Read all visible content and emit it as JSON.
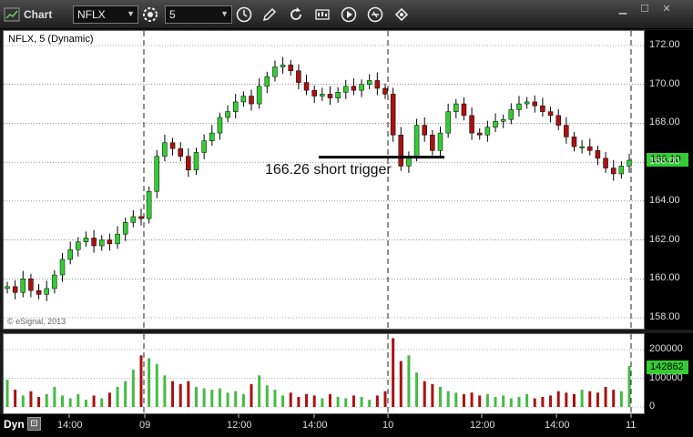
{
  "toolbar": {
    "title": "Chart",
    "symbol": "NFLX",
    "interval": "5",
    "icons": [
      "settings-icon",
      "clock-icon",
      "draw-pencil-icon",
      "refresh-icon",
      "study-icon",
      "play-icon",
      "link-icon",
      "tools-icon"
    ],
    "window_buttons": [
      "minimize",
      "maximize",
      "close"
    ]
  },
  "pane": {
    "symbol_label": "NFLX, 5 (Dynamic)",
    "copyright": "© eSignal, 2013",
    "annotation": "166.26 short trigger"
  },
  "price_axis": {
    "ticks": [
      "172.00",
      "170.00",
      "168.00",
      "166.00",
      "164.00",
      "162.00",
      "160.00",
      "158.00"
    ],
    "last_price": "166.10"
  },
  "volume_axis": {
    "ticks": [
      "200000",
      "100000",
      "0"
    ],
    "last_volume": "142862"
  },
  "time_axis": {
    "labels": [
      "14:00",
      "09",
      "12:00",
      "14:00",
      "10",
      "12:00",
      "14:00",
      "11"
    ]
  },
  "footer": {
    "mode": "Dyn"
  },
  "colors": {
    "up": "#33cc33",
    "down": "#aa1111",
    "wick": "#000000",
    "volume_up": "#44bb44",
    "volume_down": "#aa1111",
    "last_tag": "#33cc33"
  },
  "chart_data": {
    "type": "candlestick",
    "trigger_level": 166.26,
    "ylim": [
      157.5,
      172.6
    ],
    "volume_ylim": [
      0,
      250000
    ],
    "path": [
      159.6,
      159.3,
      160.0,
      159.4,
      159.2,
      159.5,
      160.2,
      161.0,
      161.5,
      161.9,
      162.1,
      161.7,
      162.0,
      161.8,
      162.3,
      162.9,
      163.2,
      163.1,
      164.5,
      166.3,
      167.0,
      166.7,
      166.3,
      165.6,
      166.5,
      167.1,
      167.5,
      168.3,
      168.6,
      169.1,
      169.4,
      169.0,
      169.9,
      170.4,
      170.9,
      171.0,
      170.7,
      170.1,
      169.7,
      169.4,
      169.5,
      169.3,
      169.6,
      169.9,
      169.7,
      170.0,
      170.2,
      169.8,
      169.5,
      167.4,
      165.8,
      166.3,
      167.9,
      167.4,
      166.6,
      167.5,
      168.6,
      169.0,
      168.4,
      167.5,
      167.4,
      167.8,
      168.1,
      168.2,
      168.7,
      169.0,
      169.1,
      168.9,
      168.6,
      168.4,
      167.9,
      167.3,
      166.8,
      166.8,
      166.6,
      166.2,
      165.7,
      165.4,
      165.8,
      166.1
    ],
    "volume": [
      95000,
      60000,
      40000,
      55000,
      35000,
      45000,
      70000,
      40000,
      30000,
      45000,
      25000,
      40000,
      30000,
      50000,
      70000,
      90000,
      130000,
      180000,
      170000,
      150000,
      110000,
      90000,
      80000,
      90000,
      70000,
      65000,
      60000,
      65000,
      50000,
      55000,
      45000,
      80000,
      110000,
      75000,
      60000,
      40000,
      50000,
      35000,
      45000,
      40000,
      30000,
      45000,
      35000,
      30000,
      40000,
      35000,
      25000,
      40000,
      55000,
      240000,
      160000,
      180000,
      120000,
      90000,
      80000,
      70000,
      55000,
      50000,
      45000,
      50000,
      40000,
      45000,
      35000,
      40000,
      30000,
      35000,
      45000,
      30000,
      35000,
      40000,
      55000,
      50000,
      45000,
      60000,
      55000,
      50000,
      70000,
      60000,
      55000,
      142862
    ]
  }
}
